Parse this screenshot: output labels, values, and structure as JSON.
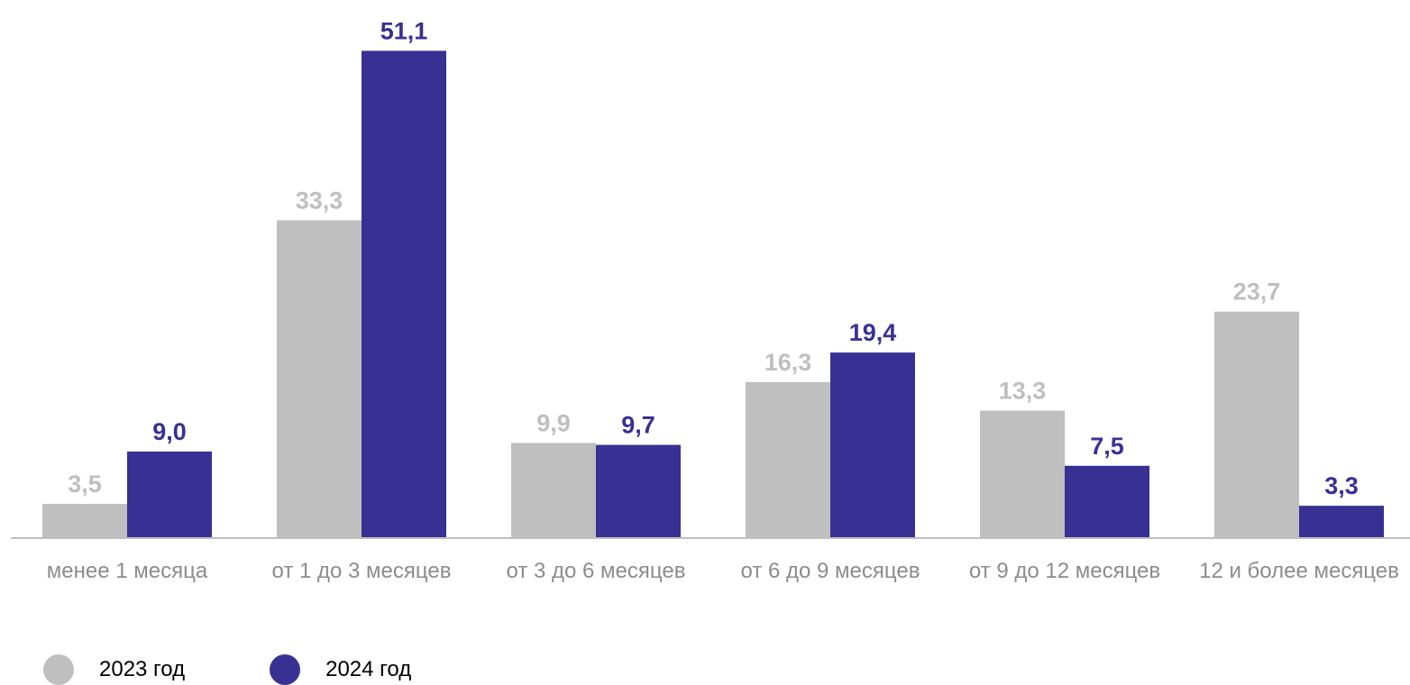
{
  "chart_data": {
    "type": "bar",
    "categories": [
      "менее 1 месяца",
      "от 1 до 3 месяцев",
      "от 3 до 6 месяцев",
      "от 6 до 9 месяцев",
      "от 9 до 12 месяцев",
      "12 и более месяцев"
    ],
    "series": [
      {
        "name": "2023 год",
        "color": "#bfbfbf",
        "values": [
          3.5,
          33.3,
          9.9,
          16.3,
          13.3,
          23.7
        ],
        "labels": [
          "3,5",
          "33,3",
          "9,9",
          "16,3",
          "13,3",
          "23,7"
        ]
      },
      {
        "name": "2024 год",
        "color": "#383193",
        "values": [
          9.0,
          51.1,
          9.7,
          19.4,
          7.5,
          3.3
        ],
        "labels": [
          "9,0",
          "51,1",
          "9,7",
          "19,4",
          "7,5",
          "3,3"
        ]
      }
    ],
    "title": "",
    "xlabel": "",
    "ylabel": "",
    "ylim": [
      0,
      51.1
    ],
    "grid": false,
    "legend_position": "bottom-left",
    "axis_color": "#bfbfbf"
  }
}
